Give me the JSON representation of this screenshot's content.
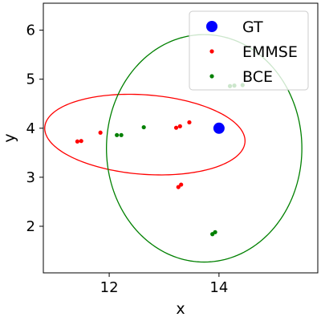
{
  "chart_data": {
    "type": "scatter",
    "title": "",
    "xlabel": "x",
    "ylabel": "y",
    "xlim": [
      10.8,
      15.8
    ],
    "ylim": [
      1.05,
      6.55
    ],
    "xticks": [
      12,
      14
    ],
    "yticks": [
      2,
      3,
      4,
      5,
      6
    ],
    "xtick_labels": [
      "12",
      "14"
    ],
    "ytick_labels": [
      "2",
      "3",
      "4",
      "5",
      "6"
    ],
    "grid": false,
    "legend_position": "top-right",
    "series": [
      {
        "name": "GT",
        "color": "#0000ff",
        "marker": "large-circle",
        "points": [
          {
            "x": 14.0,
            "y": 4.0
          }
        ]
      },
      {
        "name": "EMMSE",
        "color": "#ff0000",
        "marker": "small-circle",
        "points": [
          {
            "x": 11.42,
            "y": 3.73
          },
          {
            "x": 11.49,
            "y": 3.74
          },
          {
            "x": 11.84,
            "y": 3.91
          },
          {
            "x": 13.22,
            "y": 4.01
          },
          {
            "x": 13.29,
            "y": 4.04
          },
          {
            "x": 13.46,
            "y": 4.12
          },
          {
            "x": 13.26,
            "y": 2.8
          },
          {
            "x": 13.31,
            "y": 2.85
          }
        ]
      },
      {
        "name": "BCE",
        "color": "#008000",
        "marker": "small-circle",
        "points": [
          {
            "x": 12.14,
            "y": 3.86
          },
          {
            "x": 12.22,
            "y": 3.86
          },
          {
            "x": 12.63,
            "y": 4.02
          },
          {
            "x": 14.2,
            "y": 4.86
          },
          {
            "x": 14.28,
            "y": 4.87
          },
          {
            "x": 14.43,
            "y": 4.88
          },
          {
            "x": 13.88,
            "y": 1.84
          },
          {
            "x": 13.93,
            "y": 1.88
          }
        ]
      }
    ],
    "ellipses": [
      {
        "series": "EMMSE",
        "color": "#ff0000",
        "center": {
          "x": 12.65,
          "y": 3.87
        },
        "semi_major": 1.83,
        "semi_minor": 0.81,
        "angle_deg": -5
      },
      {
        "series": "BCE",
        "color": "#008000",
        "center": {
          "x": 13.73,
          "y": 3.59
        },
        "semi_major": 2.32,
        "semi_minor": 1.78,
        "angle_deg": 90
      }
    ]
  }
}
